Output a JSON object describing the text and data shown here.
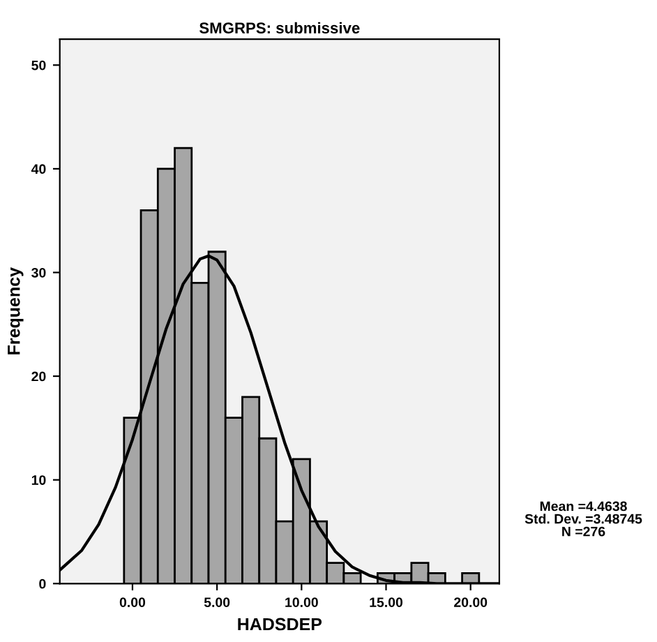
{
  "chart_data": {
    "type": "histogram",
    "title": "SMGRPS: submissive",
    "xlabel": "HADSDEP",
    "ylabel": "Frequency",
    "bins": [
      -0.5,
      0.5,
      1.5,
      2.5,
      3.5,
      4.5,
      5.5,
      6.5,
      7.5,
      8.5,
      9.5,
      10.5,
      11.5,
      12.5,
      13.5,
      14.5,
      15.5,
      16.5,
      17.5,
      18.5,
      19.5,
      20.5
    ],
    "values": [
      16,
      36,
      40,
      42,
      29,
      32,
      16,
      18,
      14,
      6,
      12,
      6,
      2,
      1,
      0,
      1,
      1,
      2,
      1,
      0,
      1
    ],
    "color": "#a6a6a6",
    "series": [
      {
        "type": "line",
        "color": "#000000",
        "x": [
          -4.3,
          -3,
          -2,
          -1,
          0,
          1,
          2,
          3,
          4,
          4.5,
          5,
          6,
          7,
          8,
          9,
          10,
          11,
          12,
          13,
          14,
          15,
          16,
          17,
          18,
          21.7
        ],
        "values": [
          1.3,
          3.2,
          5.7,
          9.3,
          13.9,
          19.3,
          24.6,
          28.9,
          31.3,
          31.6,
          31.2,
          28.7,
          24.2,
          18.9,
          13.6,
          9.0,
          5.5,
          3.1,
          1.6,
          0.8,
          0.3,
          0.1,
          0.1,
          0,
          0
        ]
      }
    ],
    "xlim": [
      -4.3,
      21.7
    ],
    "ylim": [
      0,
      52.5
    ],
    "xticks": [
      {
        "value": 0,
        "label": "0.00"
      },
      {
        "value": 5,
        "label": "5.00"
      },
      {
        "value": 10,
        "label": "10.00"
      },
      {
        "value": 15,
        "label": "15.00"
      },
      {
        "value": 20,
        "label": "20.00"
      }
    ],
    "yticks": [
      0,
      10,
      20,
      30,
      40,
      50
    ],
    "grid": false,
    "legend": false,
    "annotations": [
      "Mean =4.4638\nStd. Dev. =3.48745\nN =276"
    ]
  }
}
